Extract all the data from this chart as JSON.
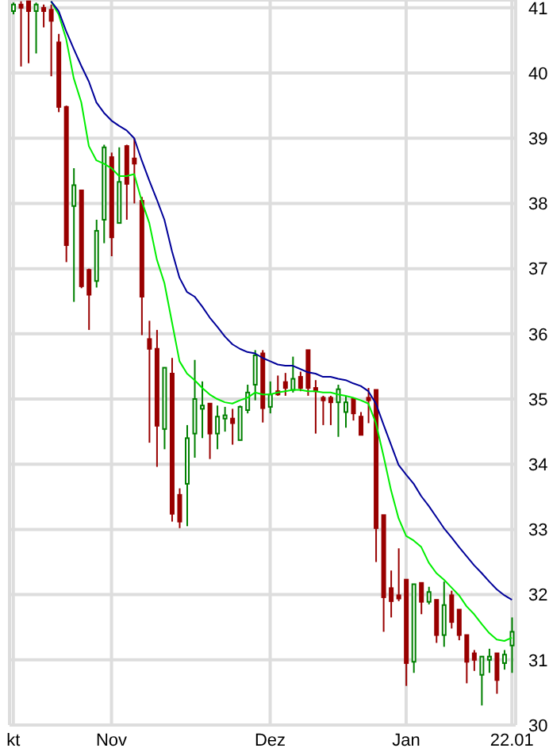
{
  "chart_data": {
    "type": "candlestick",
    "categories": [
      "kt",
      null,
      null,
      null,
      null,
      null,
      null,
      null,
      null,
      null,
      null,
      null,
      null,
      "Nov",
      null,
      null,
      null,
      null,
      null,
      null,
      null,
      null,
      null,
      null,
      null,
      null,
      null,
      null,
      null,
      null,
      null,
      null,
      null,
      null,
      "Dez",
      null,
      null,
      null,
      null,
      null,
      null,
      null,
      null,
      null,
      null,
      null,
      null,
      null,
      null,
      null,
      null,
      null,
      "Jan",
      null,
      null,
      null,
      null,
      null,
      null,
      null,
      null,
      null,
      null,
      null,
      null,
      null,
      "22.01"
    ],
    "ohlc": [
      [
        40.95,
        41.08,
        40.9,
        41.05
      ],
      [
        41.05,
        41.1,
        40.1,
        41.0
      ],
      [
        41.1,
        41.1,
        40.15,
        40.95
      ],
      [
        40.95,
        41.08,
        40.3,
        41.05
      ],
      [
        41.0,
        41.05,
        40.7,
        40.95
      ],
      [
        40.97,
        41.05,
        39.95,
        40.8
      ],
      [
        40.47,
        40.6,
        39.4,
        39.48
      ],
      [
        39.48,
        39.5,
        37.1,
        37.36
      ],
      [
        37.96,
        38.54,
        36.49,
        38.28
      ],
      [
        38.2,
        38.2,
        36.7,
        36.73
      ],
      [
        36.98,
        37.0,
        36.06,
        36.6
      ],
      [
        36.81,
        37.75,
        36.71,
        37.58
      ],
      [
        37.75,
        38.9,
        37.39,
        38.86
      ],
      [
        38.71,
        38.78,
        37.19,
        37.48
      ],
      [
        37.7,
        38.86,
        37.7,
        38.33
      ],
      [
        38.88,
        38.9,
        37.75,
        38.3
      ],
      [
        38.69,
        39.0,
        38.0,
        38.61
      ],
      [
        38.04,
        38.1,
        35.98,
        36.57
      ],
      [
        35.92,
        36.2,
        34.33,
        35.77
      ],
      [
        35.77,
        36.06,
        33.96,
        34.59
      ],
      [
        34.54,
        35.48,
        34.23,
        35.48
      ],
      [
        35.39,
        35.63,
        33.12,
        33.24
      ],
      [
        33.53,
        33.63,
        33.02,
        33.12
      ],
      [
        33.7,
        34.6,
        33.05,
        34.4
      ],
      [
        34.47,
        35.6,
        34.1,
        35.0
      ],
      [
        34.85,
        35.27,
        34.4,
        34.9
      ],
      [
        34.93,
        34.93,
        34.08,
        34.47
      ],
      [
        34.47,
        34.9,
        34.23,
        34.73
      ],
      [
        34.7,
        34.88,
        34.5,
        34.75
      ],
      [
        34.7,
        34.85,
        34.3,
        34.63
      ],
      [
        34.37,
        34.9,
        34.37,
        34.88
      ],
      [
        34.83,
        35.22,
        34.78,
        35.1
      ],
      [
        35.22,
        35.75,
        34.98,
        35.67
      ],
      [
        35.7,
        35.75,
        34.64,
        34.86
      ],
      [
        34.88,
        35.27,
        34.78,
        35.07
      ],
      [
        35.12,
        35.36,
        35.05,
        35.07
      ],
      [
        35.26,
        35.4,
        35.05,
        35.17
      ],
      [
        35.14,
        35.65,
        35.1,
        35.31
      ],
      [
        35.34,
        35.42,
        35.12,
        35.17
      ],
      [
        35.75,
        35.75,
        35.05,
        35.17
      ],
      [
        35.17,
        35.29,
        34.47,
        35.12
      ],
      [
        35.02,
        35.05,
        34.6,
        34.98
      ],
      [
        35.02,
        35.05,
        34.6,
        34.95
      ],
      [
        34.95,
        35.22,
        34.42,
        35.15
      ],
      [
        34.8,
        35.05,
        34.56,
        34.95
      ],
      [
        35.0,
        35.0,
        34.67,
        34.78
      ],
      [
        34.73,
        34.8,
        34.45,
        34.45
      ],
      [
        35.02,
        35.17,
        34.63,
        34.98
      ],
      [
        35.14,
        35.14,
        32.5,
        33.02
      ],
      [
        33.22,
        33.22,
        31.43,
        31.96
      ],
      [
        32.1,
        32.37,
        31.65,
        31.9
      ],
      [
        31.99,
        32.71,
        31.9,
        31.94
      ],
      [
        32.23,
        32.23,
        30.6,
        30.95
      ],
      [
        30.97,
        32.16,
        30.8,
        32.16
      ],
      [
        32.18,
        32.18,
        31.7,
        31.89
      ],
      [
        31.89,
        32.12,
        31.85,
        32.04
      ],
      [
        31.92,
        31.92,
        31.26,
        31.38
      ],
      [
        31.38,
        32.2,
        31.2,
        31.84
      ],
      [
        31.99,
        32.06,
        31.48,
        31.58
      ],
      [
        31.77,
        31.77,
        31.3,
        31.38
      ],
      [
        31.38,
        31.38,
        30.64,
        30.97
      ],
      [
        31.1,
        31.15,
        30.83,
        31.0
      ],
      [
        30.77,
        31.05,
        30.3,
        31.05
      ],
      [
        31.0,
        31.17,
        30.8,
        31.05
      ],
      [
        31.1,
        31.1,
        30.48,
        30.69
      ],
      [
        30.95,
        31.15,
        30.85,
        31.08
      ],
      [
        31.22,
        31.65,
        30.8,
        31.43
      ]
    ],
    "colors": [
      "#008000",
      "#990000",
      "#990000",
      "#008000",
      "#990000",
      "#990000",
      "#990000",
      "#990000",
      "#008000",
      "#990000",
      "#990000",
      "#008000",
      "#008000",
      "#990000",
      "#008000",
      "#990000",
      "#990000",
      "#990000",
      "#990000",
      "#990000",
      "#008000",
      "#990000",
      "#990000",
      "#008000",
      "#008000",
      "#008000",
      "#990000",
      "#008000",
      "#008000",
      "#990000",
      "#008000",
      "#008000",
      "#008000",
      "#990000",
      "#008000",
      "#990000",
      "#990000",
      "#008000",
      "#990000",
      "#990000",
      "#990000",
      "#990000",
      "#990000",
      "#008000",
      "#008000",
      "#990000",
      "#990000",
      "#990000",
      "#990000",
      "#990000",
      "#990000",
      "#990000",
      "#990000",
      "#008000",
      "#990000",
      "#008000",
      "#990000",
      "#008000",
      "#990000",
      "#990000",
      "#990000",
      "#990000",
      "#008000",
      "#008000",
      "#990000",
      "#008000",
      "#008000"
    ],
    "series": [
      {
        "type": "line",
        "color": "#00ee00",
        "values": [
          null,
          null,
          null,
          null,
          null,
          41.1,
          40.9,
          40.52,
          39.92,
          39.55,
          38.88,
          38.66,
          38.61,
          38.54,
          38.42,
          38.42,
          38.45,
          38.04,
          37.7,
          37.14,
          36.78,
          36.18,
          35.58,
          35.39,
          35.29,
          35.17,
          35.07,
          35.0,
          34.95,
          34.93,
          34.98,
          35.02,
          35.1,
          35.07,
          35.07,
          35.1,
          35.12,
          35.14,
          35.14,
          35.12,
          35.12,
          35.1,
          35.1,
          35.07,
          35.05,
          35.02,
          34.98,
          34.93,
          34.63,
          34.13,
          33.6,
          33.17,
          32.9,
          32.83,
          32.73,
          32.49,
          32.33,
          32.23,
          32.11,
          31.99,
          31.82,
          31.7,
          31.55,
          31.41,
          31.31,
          31.29,
          31.34
        ]
      },
      {
        "type": "line",
        "color": "#000099",
        "values": [
          null,
          null,
          null,
          null,
          null,
          41.1,
          40.95,
          40.64,
          40.37,
          40.11,
          39.87,
          39.55,
          39.39,
          39.27,
          39.19,
          39.12,
          39.0,
          38.66,
          38.35,
          38.06,
          37.75,
          37.27,
          36.86,
          36.64,
          36.57,
          36.42,
          36.25,
          36.11,
          35.96,
          35.84,
          35.77,
          35.72,
          35.7,
          35.63,
          35.58,
          35.53,
          35.51,
          35.51,
          35.46,
          35.41,
          35.39,
          35.34,
          35.34,
          35.31,
          35.29,
          35.24,
          35.2,
          35.12,
          34.93,
          34.61,
          34.3,
          33.99,
          33.84,
          33.7,
          33.51,
          33.36,
          33.19,
          33.02,
          32.88,
          32.73,
          32.59,
          32.45,
          32.33,
          32.2,
          32.08,
          31.99,
          31.92
        ]
      }
    ],
    "ylim": [
      30,
      41.12
    ],
    "yticks": [
      30,
      31,
      32,
      33,
      34,
      35,
      36,
      37,
      38,
      39,
      40,
      41
    ],
    "grid": true,
    "marker": "none"
  }
}
